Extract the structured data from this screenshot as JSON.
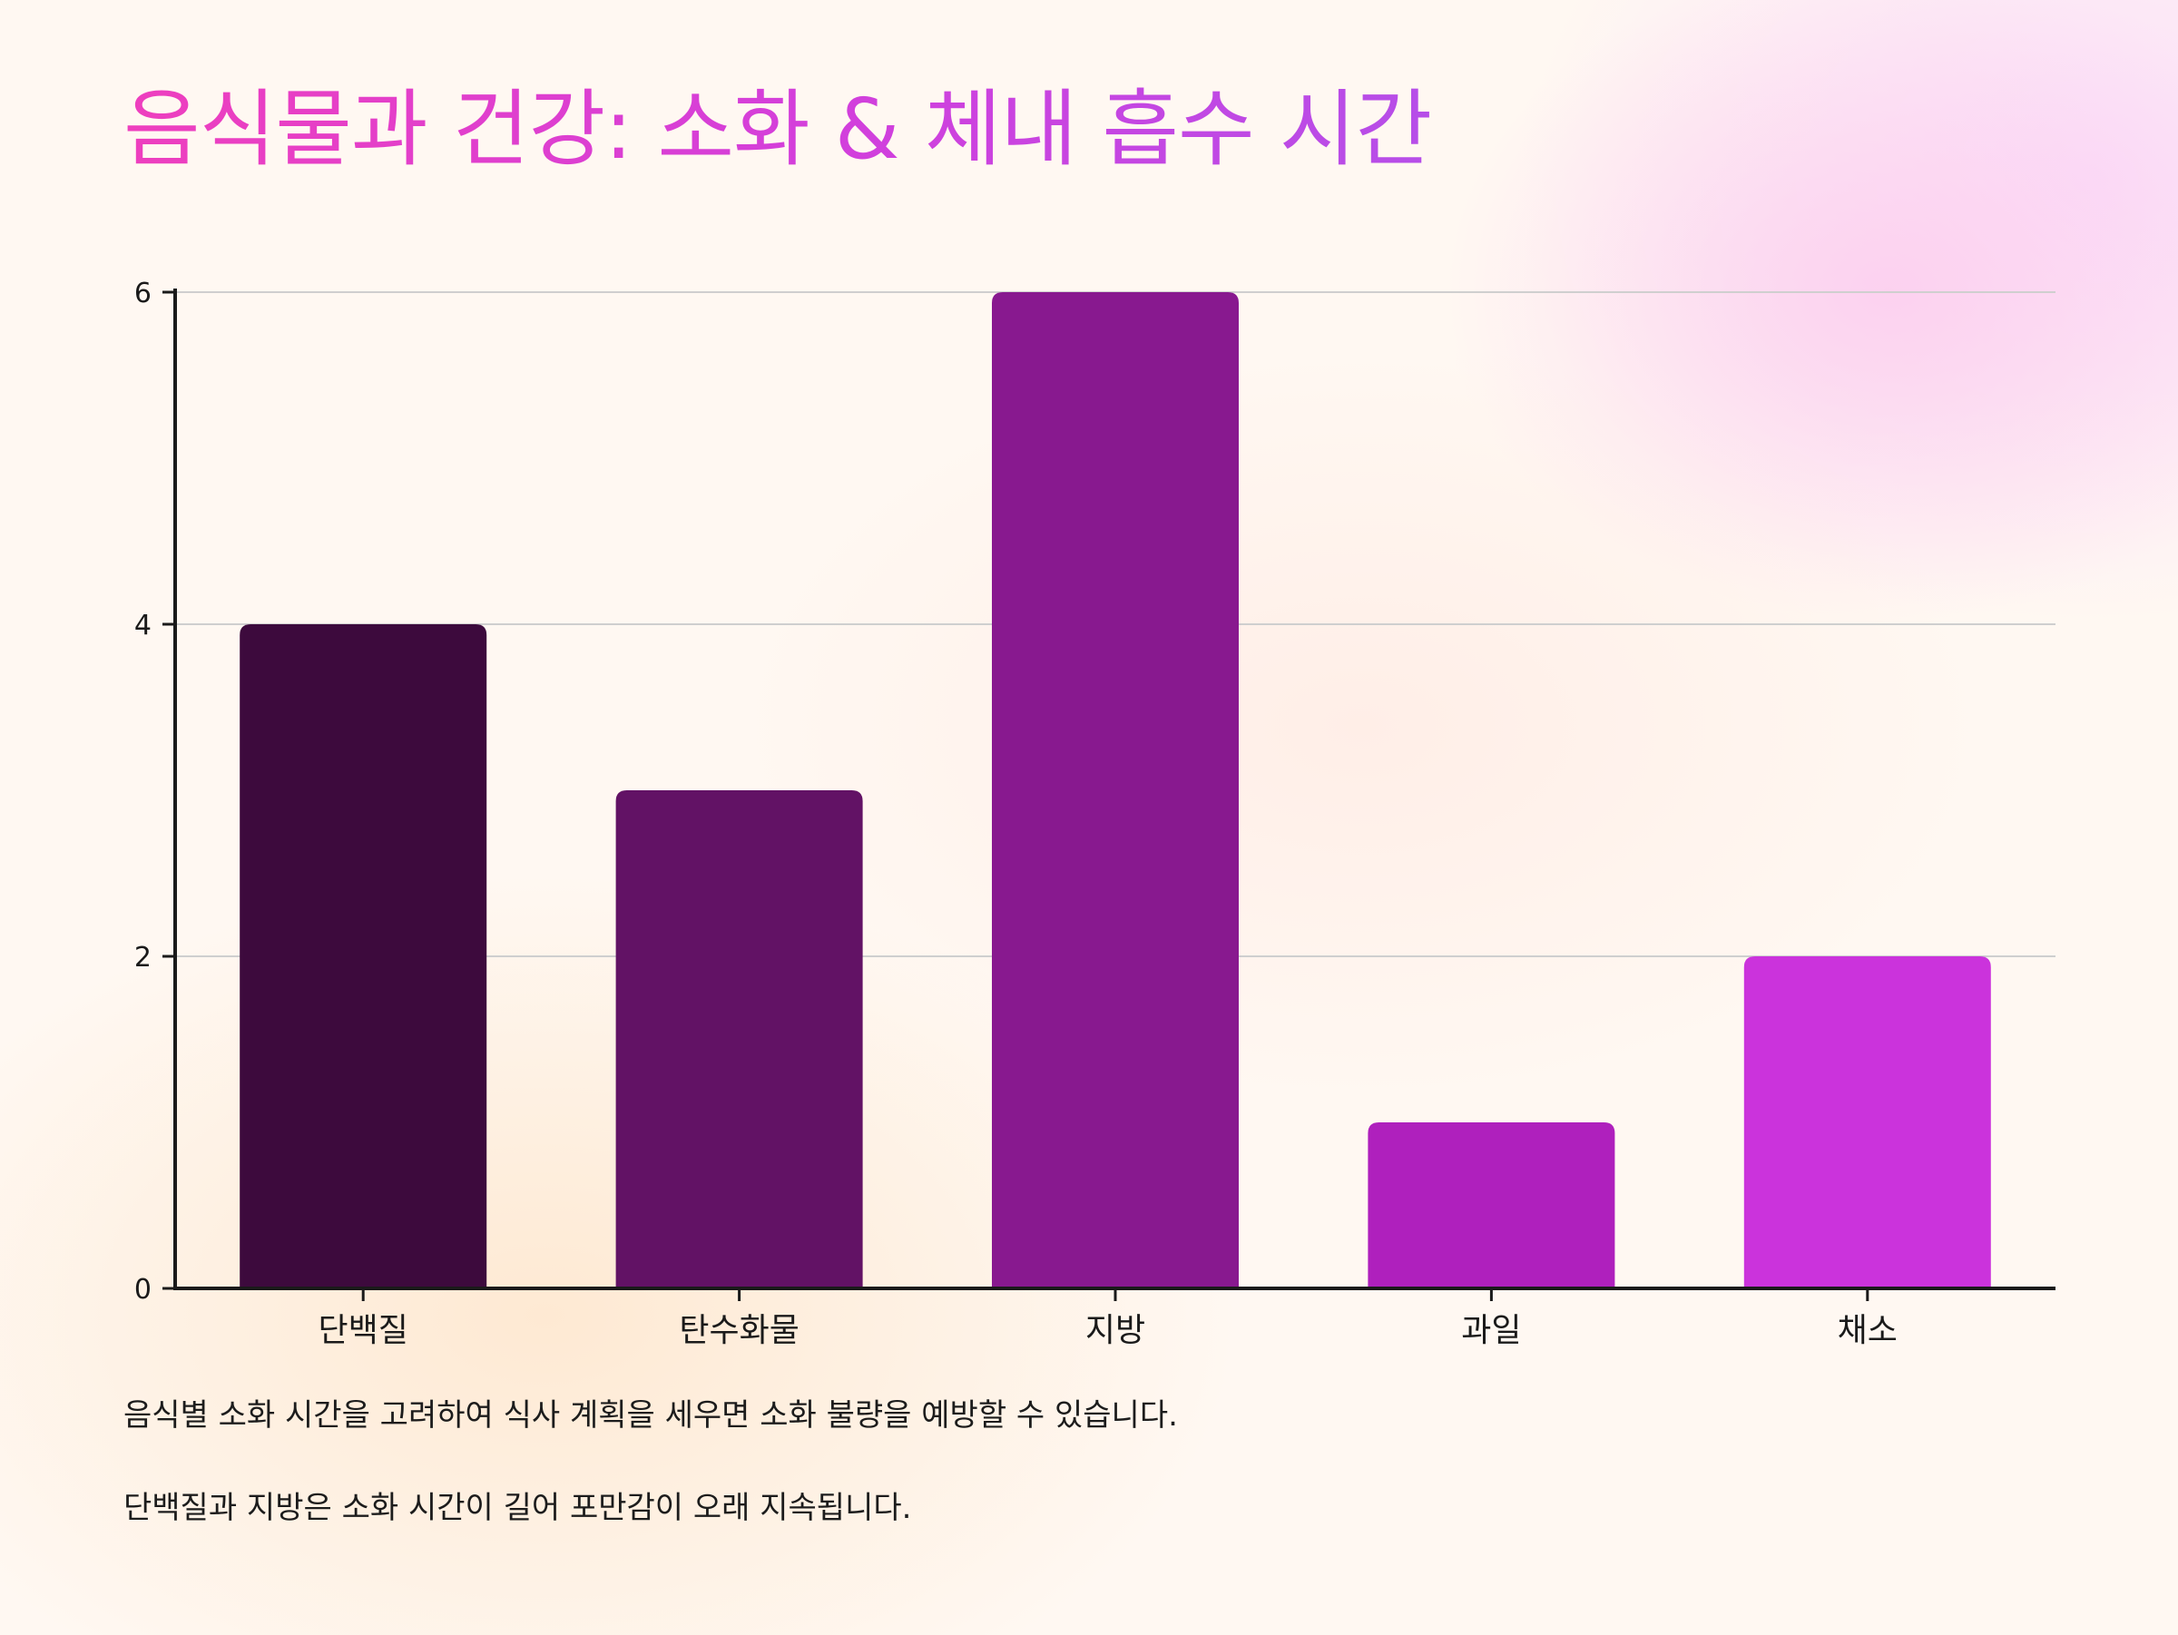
{
  "title": "음식물과 건강: 소화 & 체내 흡수 시간",
  "notes": [
    "음식별 소화 시간을 고려하여 식사 계획을 세우면 소화 불량을 예방할 수 있습니다.",
    "단백질과 지방은 소화 시간이 길어 포만감이 오래 지속됩니다."
  ],
  "chart_data": {
    "type": "bar",
    "categories": [
      "단백질",
      "탄수화물",
      "지방",
      "과일",
      "채소"
    ],
    "values": [
      4,
      3,
      6,
      1,
      2
    ],
    "colors": [
      "#3d0a3d",
      "#621265",
      "#88198f",
      "#af20bd",
      "#cb33dc"
    ],
    "title": "",
    "xlabel": "",
    "ylabel": "",
    "ylim": [
      0,
      6
    ],
    "yticks": [
      0,
      2,
      4,
      6
    ],
    "grid": true,
    "legend": "none"
  }
}
